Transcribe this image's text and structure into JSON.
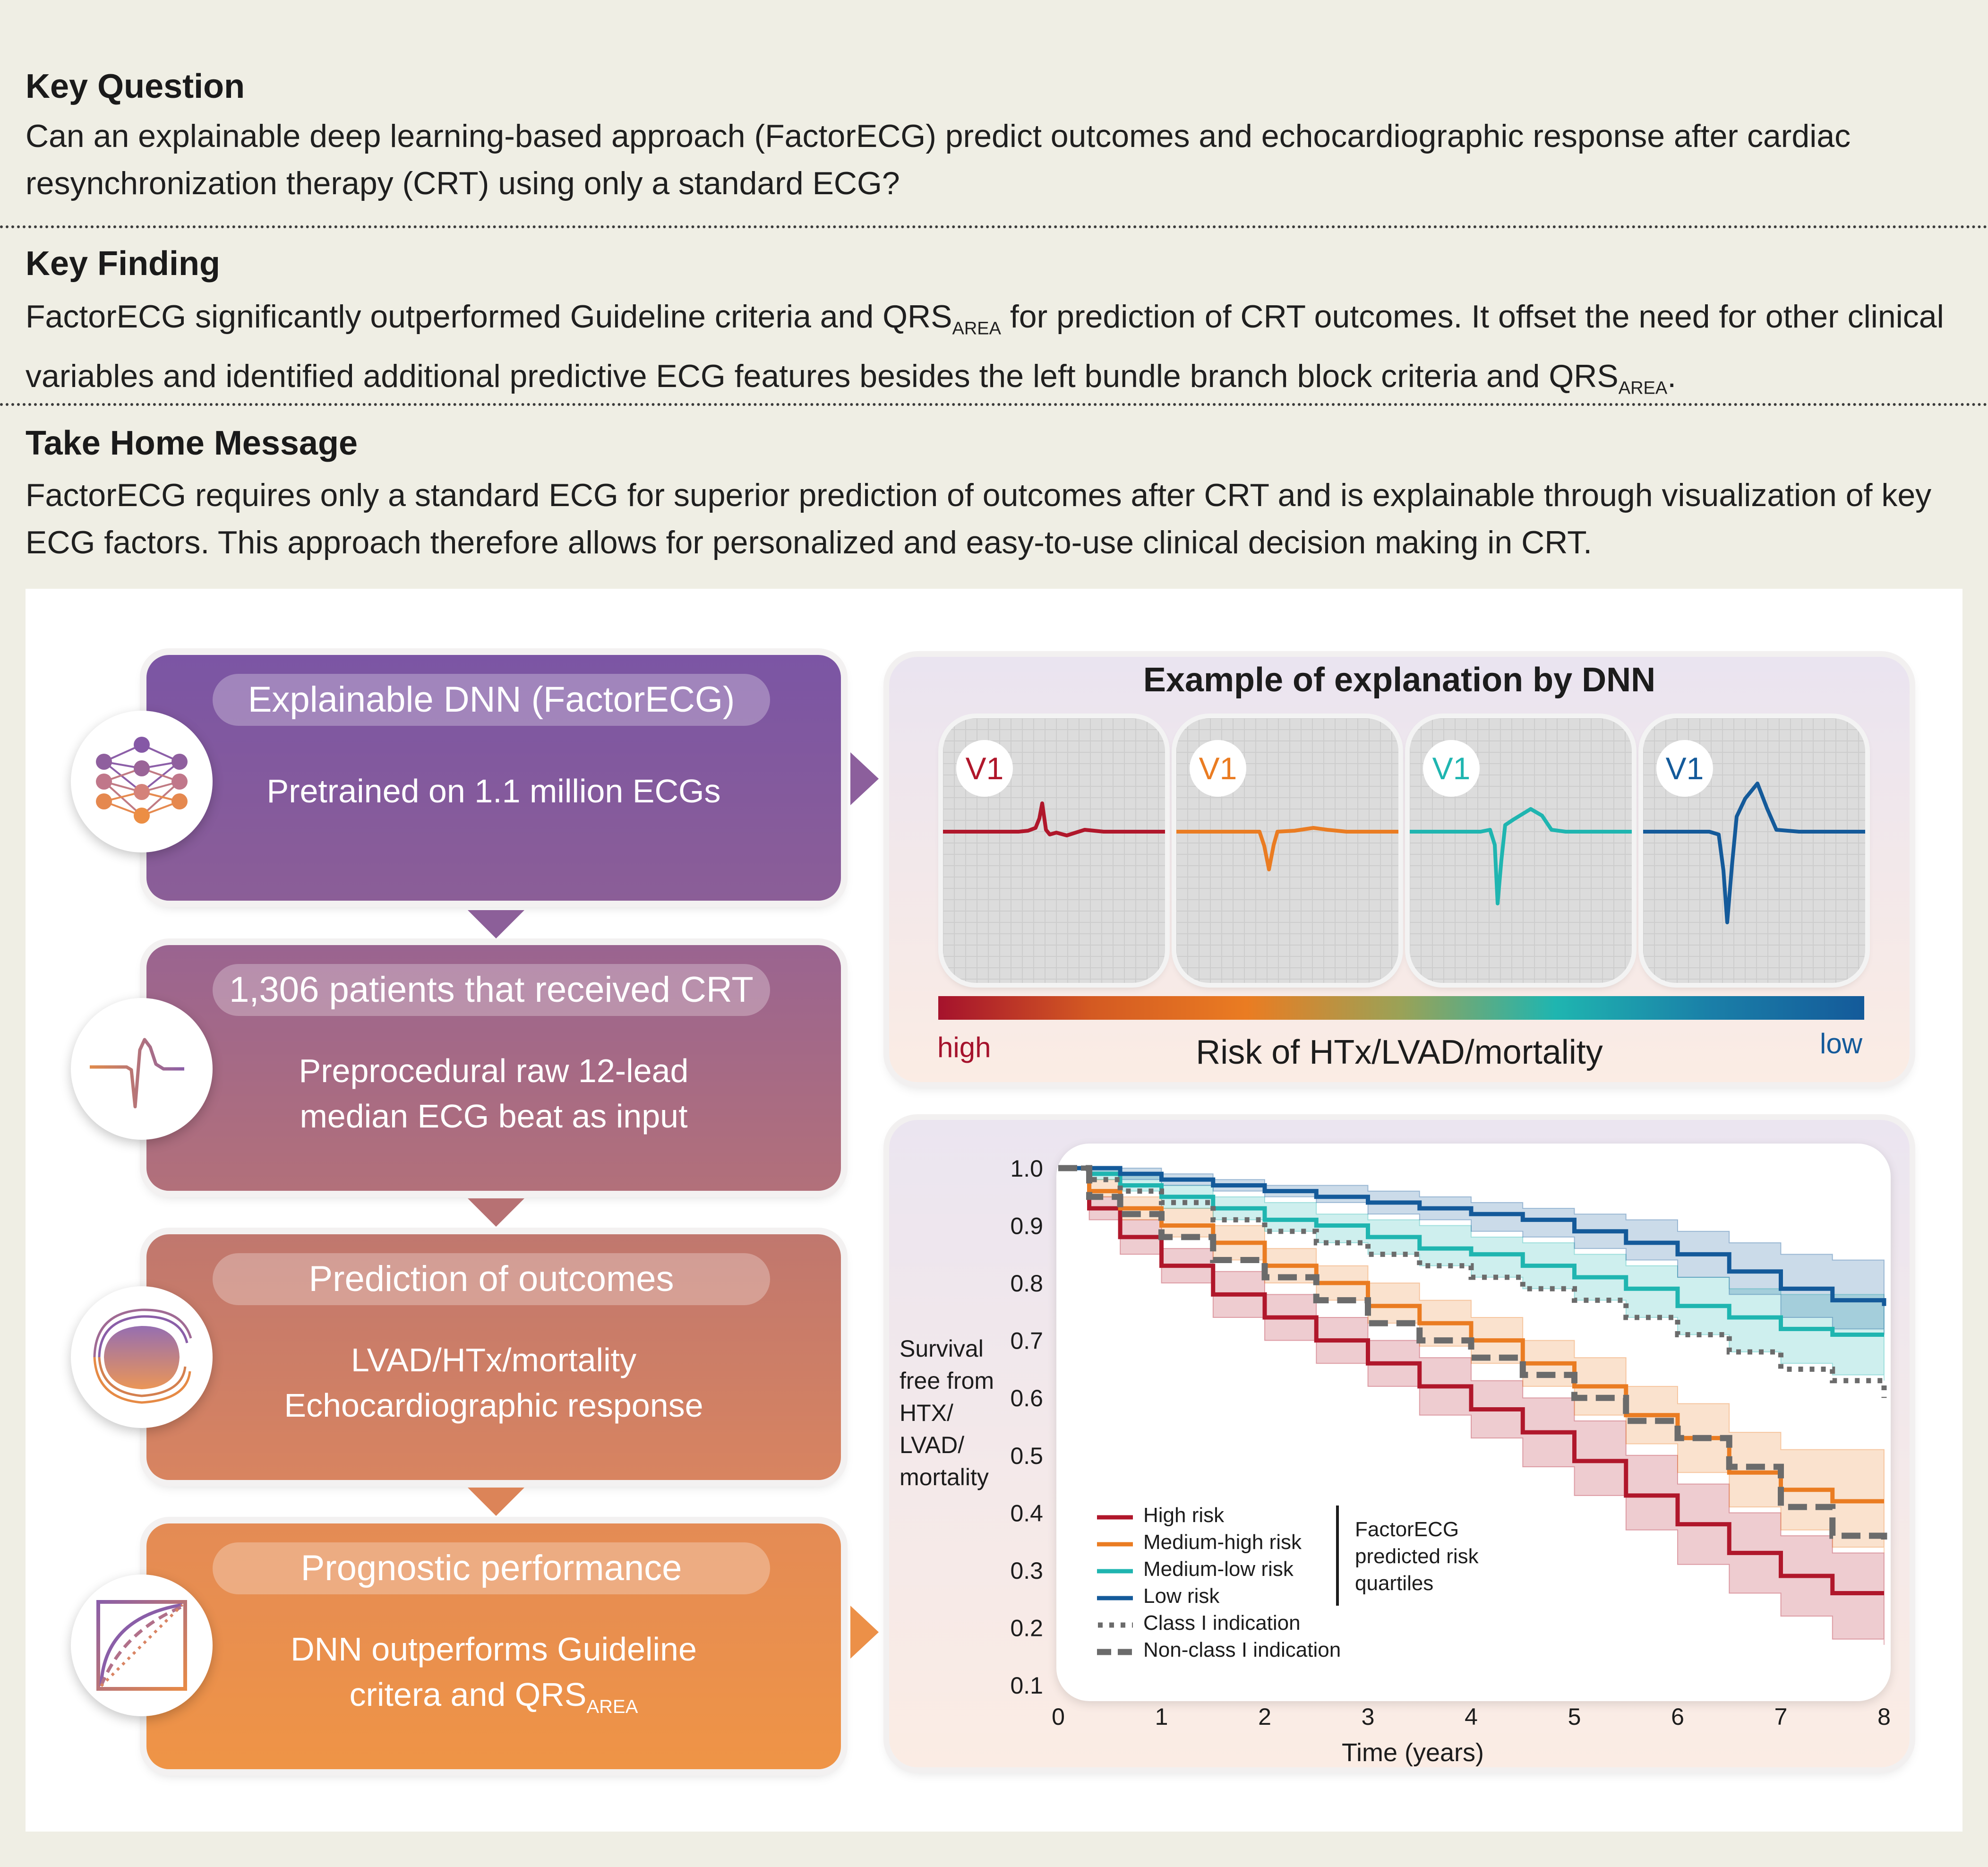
{
  "key_question": {
    "title": "Key Question",
    "text": "Can an explainable deep learning-based approach (FactorECG) predict outcomes and echocardiographic response after cardiac resynchronization therapy (CRT) using only a standard ECG?"
  },
  "key_finding": {
    "title": "Key Finding",
    "text_part1": "FactorECG significantly outperformed Guideline criteria and QRS",
    "sub1": "AREA",
    "text_part2": " for prediction of CRT outcomes. It offset the need for other clinical variables and identified additional predictive ECG features besides the left bundle branch block criteria and QRS",
    "sub2": "AREA",
    "text_part3": "."
  },
  "take_home": {
    "title": "Take Home Message",
    "text": "FactorECG requires only a standard ECG for superior prediction of outcomes after CRT and is explainable through visualization of key ECG factors. This approach therefore allows for personalized and easy-to-use clinical decision making in CRT."
  },
  "flow": [
    {
      "title": "Explainable DNN (FactorECG)",
      "line1": "Pretrained on 1.1 million ECGs",
      "line2": "",
      "icon": "neural-network-icon",
      "color_top": "#7b55a4",
      "color_bottom": "#8b5e97"
    },
    {
      "title": "1,306 patients that received CRT",
      "line1": "Preprocedural raw 12-lead",
      "line2": "median ECG beat as input",
      "icon": "ecg-beat-icon",
      "color_top": "#9a6490",
      "color_bottom": "#b2707a"
    },
    {
      "title": "Prediction of outcomes",
      "line1": "LVAD/HTx/mortality",
      "line2": "Echocardiographic response",
      "icon": "pacemaker-device-icon",
      "color_top": "#c0776e",
      "color_bottom": "#d88460"
    },
    {
      "title": "Prognostic performance",
      "line1": "DNN outperforms Guideline",
      "line2": "critera and QRS",
      "line2_sub": "AREA",
      "icon": "roc-curve-icon",
      "color_top": "#e48b55",
      "color_bottom": "#ef9446"
    }
  ],
  "explanation": {
    "title": "Example of explanation by DNN",
    "leads": [
      {
        "label": "V1",
        "color": "#b0172b"
      },
      {
        "label": "V1",
        "color": "#ea7c22"
      },
      {
        "label": "V1",
        "color": "#1fb5b0"
      },
      {
        "label": "V1",
        "color": "#145a9a"
      }
    ],
    "scale_high": "high",
    "scale_low": "low",
    "scale_caption": "Risk of HTx/LVAD/mortality"
  },
  "chart_data": {
    "type": "line",
    "title": "",
    "xlabel": "Time (years)",
    "ylabel": "Survival free from HTX/ LVAD/ mortality",
    "ylabel_lines": [
      "Survival",
      "free from",
      "HTX/",
      "LVAD/",
      "mortality"
    ],
    "xlim": [
      0,
      8
    ],
    "ylim": [
      0.1,
      1.0
    ],
    "x_ticks": [
      "0",
      "1",
      "2",
      "3",
      "4",
      "5",
      "6",
      "7",
      "8"
    ],
    "y_ticks": [
      "1.0",
      "0.9",
      "0.8",
      "0.7",
      "0.6",
      "0.5",
      "0.4",
      "0.3",
      "0.2",
      "0.1"
    ],
    "series": [
      {
        "name": "High risk",
        "style": "solid",
        "color": "#b0172b",
        "x": [
          0,
          0.3,
          0.6,
          1,
          1.5,
          2,
          2.5,
          3,
          3.5,
          4,
          4.5,
          5,
          5.5,
          6,
          6.5,
          7,
          7.5,
          8
        ],
        "y": [
          1.0,
          0.93,
          0.88,
          0.83,
          0.78,
          0.74,
          0.7,
          0.66,
          0.62,
          0.58,
          0.54,
          0.49,
          0.43,
          0.38,
          0.33,
          0.29,
          0.26,
          0.26
        ],
        "lo": [
          1.0,
          0.91,
          0.85,
          0.8,
          0.74,
          0.7,
          0.66,
          0.62,
          0.57,
          0.53,
          0.48,
          0.43,
          0.37,
          0.31,
          0.26,
          0.22,
          0.18,
          0.17
        ],
        "hi": [
          1.0,
          0.95,
          0.91,
          0.86,
          0.82,
          0.78,
          0.74,
          0.7,
          0.67,
          0.63,
          0.6,
          0.56,
          0.5,
          0.45,
          0.4,
          0.36,
          0.33,
          0.33
        ]
      },
      {
        "name": "Medium-high risk",
        "style": "solid",
        "color": "#ea7c22",
        "x": [
          0,
          0.3,
          0.6,
          1,
          1.5,
          2,
          2.5,
          3,
          3.5,
          4,
          4.5,
          5,
          5.5,
          6,
          6.5,
          7,
          7.5,
          8
        ],
        "y": [
          1.0,
          0.96,
          0.93,
          0.9,
          0.87,
          0.83,
          0.8,
          0.76,
          0.73,
          0.7,
          0.66,
          0.62,
          0.57,
          0.53,
          0.47,
          0.44,
          0.42,
          0.42
        ],
        "lo": [
          1.0,
          0.95,
          0.91,
          0.88,
          0.84,
          0.8,
          0.77,
          0.73,
          0.69,
          0.66,
          0.62,
          0.57,
          0.52,
          0.47,
          0.41,
          0.37,
          0.34,
          0.33
        ],
        "hi": [
          1.0,
          0.98,
          0.95,
          0.93,
          0.9,
          0.86,
          0.83,
          0.8,
          0.77,
          0.74,
          0.7,
          0.67,
          0.62,
          0.59,
          0.54,
          0.51,
          0.51,
          0.51
        ]
      },
      {
        "name": "Medium-low risk",
        "style": "solid",
        "color": "#1fb5b0",
        "x": [
          0,
          0.3,
          0.6,
          1,
          1.5,
          2,
          2.5,
          3,
          3.5,
          4,
          4.5,
          5,
          5.5,
          6,
          6.5,
          7,
          7.5,
          8
        ],
        "y": [
          1.0,
          0.99,
          0.97,
          0.95,
          0.93,
          0.91,
          0.9,
          0.88,
          0.86,
          0.85,
          0.83,
          0.81,
          0.79,
          0.76,
          0.74,
          0.72,
          0.71,
          0.71
        ],
        "lo": [
          1.0,
          0.98,
          0.96,
          0.93,
          0.91,
          0.89,
          0.87,
          0.85,
          0.83,
          0.81,
          0.79,
          0.77,
          0.74,
          0.71,
          0.68,
          0.66,
          0.64,
          0.63
        ],
        "hi": [
          1.0,
          1.0,
          0.99,
          0.97,
          0.95,
          0.94,
          0.92,
          0.91,
          0.9,
          0.88,
          0.87,
          0.85,
          0.83,
          0.81,
          0.79,
          0.78,
          0.78,
          0.78
        ]
      },
      {
        "name": "Low risk",
        "style": "solid",
        "color": "#145a9a",
        "x": [
          0,
          0.3,
          0.6,
          1,
          1.5,
          2,
          2.5,
          3,
          3.5,
          4,
          4.5,
          5,
          5.5,
          6,
          6.5,
          7,
          7.5,
          8
        ],
        "y": [
          1.0,
          1.0,
          0.99,
          0.98,
          0.97,
          0.96,
          0.95,
          0.94,
          0.93,
          0.92,
          0.91,
          0.89,
          0.87,
          0.85,
          0.82,
          0.79,
          0.77,
          0.76
        ],
        "lo": [
          1.0,
          0.99,
          0.98,
          0.97,
          0.96,
          0.95,
          0.94,
          0.92,
          0.91,
          0.89,
          0.88,
          0.86,
          0.84,
          0.81,
          0.78,
          0.74,
          0.72,
          0.71
        ],
        "hi": [
          1.0,
          1.0,
          1.0,
          0.99,
          0.98,
          0.97,
          0.97,
          0.96,
          0.95,
          0.94,
          0.93,
          0.92,
          0.91,
          0.89,
          0.87,
          0.85,
          0.84,
          0.84
        ]
      },
      {
        "name": "Class I indication",
        "style": "dotted",
        "color": "#6b6b6b",
        "x": [
          0,
          0.3,
          0.6,
          1,
          1.5,
          2,
          2.5,
          3,
          3.5,
          4,
          4.5,
          5,
          5.5,
          6,
          6.5,
          7,
          7.5,
          8
        ],
        "y": [
          1.0,
          0.98,
          0.96,
          0.94,
          0.91,
          0.89,
          0.87,
          0.85,
          0.83,
          0.81,
          0.79,
          0.77,
          0.74,
          0.71,
          0.68,
          0.65,
          0.63,
          0.6
        ]
      },
      {
        "name": "Non-class I indication",
        "style": "dashed",
        "color": "#6b6b6b",
        "x": [
          0,
          0.3,
          0.6,
          1,
          1.5,
          2,
          2.5,
          3,
          3.5,
          4,
          4.5,
          5,
          5.5,
          6,
          6.5,
          7,
          7.5,
          8
        ],
        "y": [
          1.0,
          0.95,
          0.92,
          0.88,
          0.84,
          0.81,
          0.77,
          0.73,
          0.7,
          0.67,
          0.64,
          0.6,
          0.56,
          0.53,
          0.48,
          0.41,
          0.36,
          0.35
        ]
      }
    ],
    "legend": {
      "position": "bottom-left",
      "entries": [
        "High risk",
        "Medium-high risk",
        "Medium-low risk",
        "Low risk",
        "Class I indication",
        "Non-class I indication"
      ],
      "group_label_lines": [
        "FactorECG",
        "predicted risk",
        "quartiles"
      ]
    },
    "grid": false
  },
  "colors": {
    "background": "#efeee4",
    "high_risk": "#b0172b",
    "medium_high": "#ea7c22",
    "medium_low": "#1fb5b0",
    "low_risk": "#145a9a",
    "indication": "#6b6b6b"
  }
}
